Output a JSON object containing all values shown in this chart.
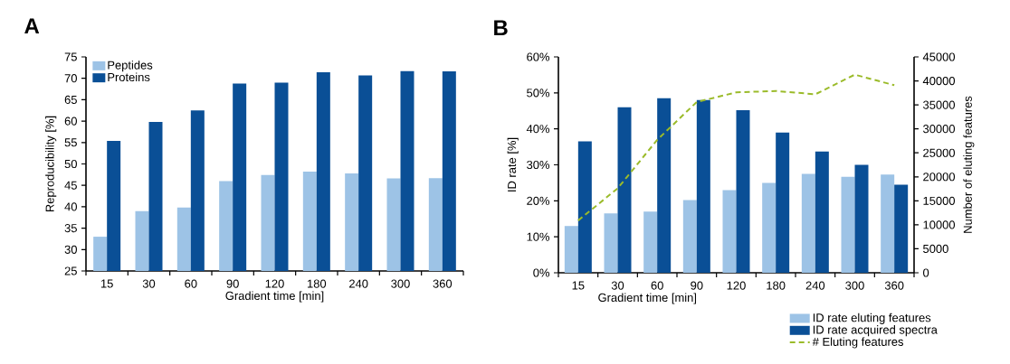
{
  "chart_data": [
    {
      "type": "bar",
      "annotations": [
        "A"
      ],
      "xlabel": "Gradient time [min]",
      "ylabel": "Reproducibility [%]",
      "categories": [
        "15",
        "30",
        "60",
        "90",
        "120",
        "180",
        "240",
        "300",
        "360"
      ],
      "ylim": [
        25,
        75
      ],
      "yticks": [
        25,
        30,
        35,
        40,
        45,
        50,
        55,
        60,
        65,
        70,
        75
      ],
      "grid": false,
      "legend": "top left",
      "series": [
        {
          "name": "Peptides",
          "color": "#9dc3e6",
          "values": [
            33,
            39,
            39.8,
            46,
            47.4,
            48.2,
            47.8,
            46.6,
            46.7
          ]
        },
        {
          "name": "Proteins",
          "color": "#0a4f96",
          "values": [
            55.4,
            59.8,
            62.5,
            68.8,
            69,
            71.4,
            70.7,
            71.7,
            71.6
          ]
        }
      ]
    },
    {
      "type": "bar",
      "annotations": [
        "B"
      ],
      "xlabel": "Gradient time [min]",
      "ylabel": "ID rate [%]",
      "y2label": "Number of eluting features",
      "categories": [
        "15",
        "30",
        "60",
        "90",
        "120",
        "180",
        "240",
        "300",
        "360"
      ],
      "ylim": [
        0,
        60
      ],
      "yticks": [
        {
          "value": 0,
          "label": "0%"
        },
        {
          "value": 10,
          "label": "10%"
        },
        {
          "value": 20,
          "label": "20%"
        },
        {
          "value": 30,
          "label": "30%"
        },
        {
          "value": 40,
          "label": "40%"
        },
        {
          "value": 50,
          "label": "50%"
        },
        {
          "value": 60,
          "label": "60%"
        }
      ],
      "y2lim": [
        0,
        45000
      ],
      "y2ticks": [
        0,
        5000,
        10000,
        15000,
        20000,
        25000,
        30000,
        35000,
        40000,
        45000
      ],
      "grid": false,
      "legend": "bottom right",
      "series": [
        {
          "name": "ID rate eluting features",
          "color": "#9dc3e6",
          "values": [
            13,
            16.5,
            17,
            20.2,
            23,
            25,
            27.5,
            26.7,
            27.3
          ]
        },
        {
          "name": "ID rate acquired spectra",
          "color": "#0a4f96",
          "values": [
            36.5,
            46,
            48.5,
            48,
            45.2,
            39,
            33.7,
            30,
            24.5
          ]
        },
        {
          "name": "# Eluting features",
          "type": "line",
          "axis": "y2",
          "line_style": "dashed",
          "color": "#9bbb2a",
          "values": [
            10900,
            17600,
            27700,
            35600,
            37600,
            37900,
            37200,
            41300,
            39100
          ]
        }
      ]
    }
  ]
}
